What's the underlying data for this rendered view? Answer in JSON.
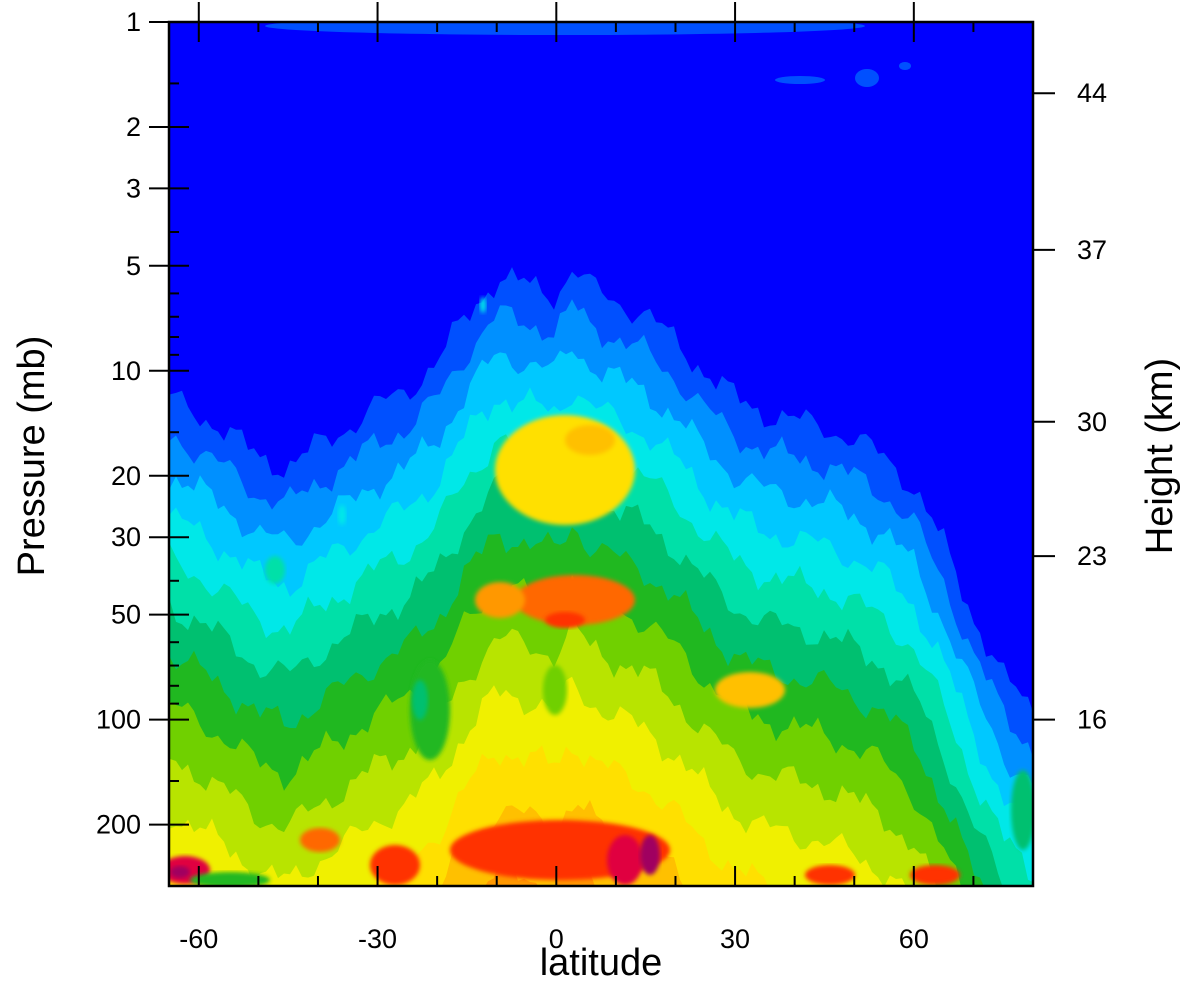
{
  "chart_data": {
    "type": "heatmap",
    "title": "",
    "xlabel": "latitude",
    "ylabel": "Pressure (mb)",
    "y2label": "Height (km)",
    "x_range": [
      -65,
      80
    ],
    "y_range_mb": [
      300,
      1
    ],
    "y_scale": "log",
    "y_reversed": true,
    "x_ticks": [
      -60,
      -30,
      0,
      30,
      60
    ],
    "x_tick_labels": [
      "-60",
      "-30",
      "0",
      "30",
      "60"
    ],
    "y_ticks": [
      1,
      2,
      3,
      5,
      10,
      20,
      30,
      50,
      100,
      200
    ],
    "y_tick_labels": [
      "1",
      "2",
      "3",
      "5",
      "10",
      "20",
      "30",
      "50",
      "100",
      "200"
    ],
    "y2_ticks_mb": [
      1.6,
      4.5,
      14,
      34,
      100
    ],
    "y2_tick_labels": [
      "44",
      "37",
      "30",
      "23",
      "16"
    ],
    "colorscale": [
      "#0000ff",
      "#0050ff",
      "#0090ff",
      "#00c8ff",
      "#00e8e8",
      "#00e0a8",
      "#00c070",
      "#20b820",
      "#70d000",
      "#b8e400",
      "#f0f000",
      "#ffe000",
      "#ffc000",
      "#ff9800",
      "#ff6800",
      "#ff3000",
      "#e00040",
      "#a00060"
    ],
    "front_profile_mb": [
      [
        -65,
        9.5
      ],
      [
        -60,
        10.5
      ],
      [
        -55,
        12
      ],
      [
        -50,
        14
      ],
      [
        -45,
        15
      ],
      [
        -40,
        13
      ],
      [
        -35,
        11.5
      ],
      [
        -30,
        10
      ],
      [
        -25,
        9
      ],
      [
        -20,
        7.5
      ],
      [
        -15,
        5.5
      ],
      [
        -10,
        4.3
      ],
      [
        -5,
        4.5
      ],
      [
        0,
        4.8
      ],
      [
        3,
        4.0
      ],
      [
        5,
        4.5
      ],
      [
        10,
        5
      ],
      [
        15,
        5.5
      ],
      [
        20,
        6.5
      ],
      [
        25,
        8
      ],
      [
        30,
        9.5
      ],
      [
        35,
        10.5
      ],
      [
        40,
        11
      ],
      [
        45,
        11.5
      ],
      [
        50,
        12.5
      ],
      [
        55,
        14
      ],
      [
        60,
        17
      ],
      [
        65,
        25
      ],
      [
        70,
        40
      ],
      [
        75,
        60
      ],
      [
        80,
        75
      ]
    ]
  }
}
